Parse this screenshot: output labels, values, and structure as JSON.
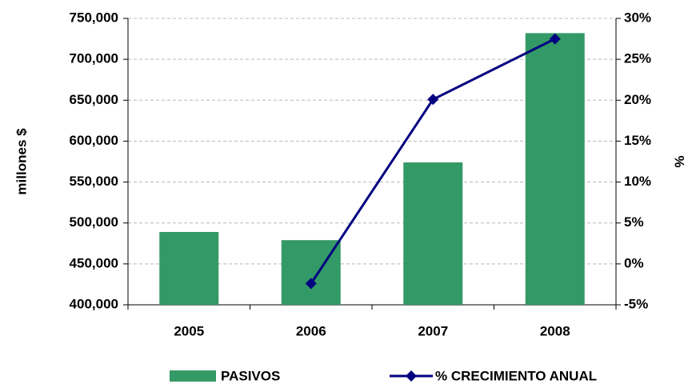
{
  "chart_data": {
    "type": "bar",
    "categories": [
      "2005",
      "2006",
      "2007",
      "2008"
    ],
    "y_label": "millones $",
    "y2_label": "%",
    "ylim": [
      400000,
      750000
    ],
    "yticks": [
      {
        "value": 400000,
        "label": "400,000"
      },
      {
        "value": 450000,
        "label": "450,000"
      },
      {
        "value": 500000,
        "label": "500,000"
      },
      {
        "value": 550000,
        "label": "550,000"
      },
      {
        "value": 600000,
        "label": "600,000"
      },
      {
        "value": 650000,
        "label": "650,000"
      },
      {
        "value": 700000,
        "label": "700,000"
      },
      {
        "value": 750000,
        "label": "750,000"
      }
    ],
    "y2lim": [
      -5,
      30
    ],
    "y2ticks": [
      {
        "value": -5,
        "label": "-5%"
      },
      {
        "value": 0,
        "label": "0%"
      },
      {
        "value": 5,
        "label": "5%"
      },
      {
        "value": 10,
        "label": "10%"
      },
      {
        "value": 15,
        "label": "15%"
      },
      {
        "value": 20,
        "label": "20%"
      },
      {
        "value": 25,
        "label": "25%"
      },
      {
        "value": 30,
        "label": "30%"
      }
    ],
    "grid": true,
    "series": [
      {
        "name": "PASIVOS",
        "type": "bar",
        "color": "#339966",
        "values": [
          489000,
          479000,
          574000,
          732000
        ]
      },
      {
        "name": "% CRECIMIENTO ANUAL",
        "type": "line",
        "axis": "y2",
        "color": "#000080",
        "values": [
          null,
          -2.4,
          20.1,
          27.5
        ]
      }
    ]
  }
}
